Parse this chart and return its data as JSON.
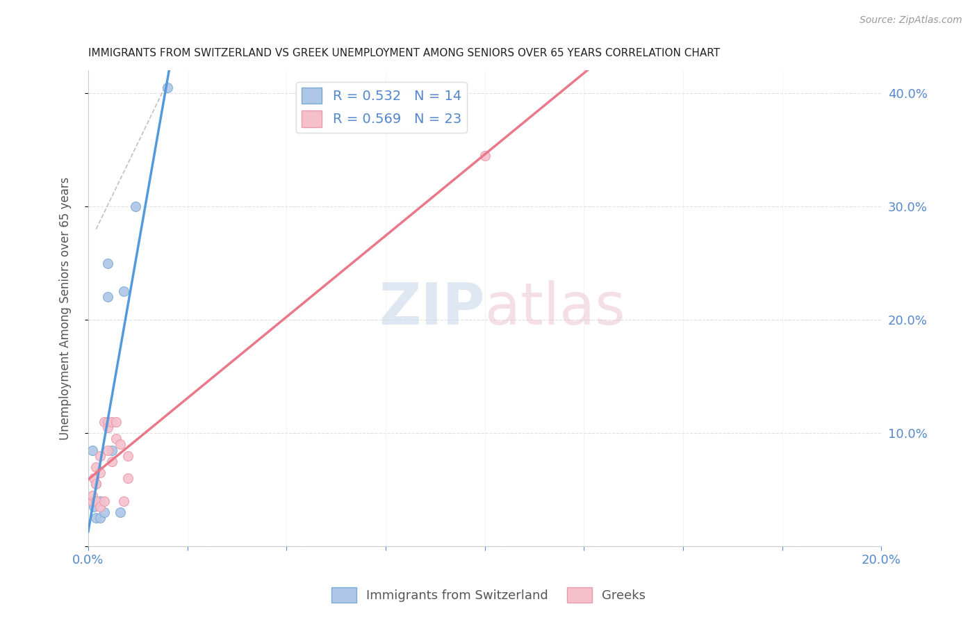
{
  "title": "IMMIGRANTS FROM SWITZERLAND VS GREEK UNEMPLOYMENT AMONG SENIORS OVER 65 YEARS CORRELATION CHART",
  "source": "Source: ZipAtlas.com",
  "ylabel": "Unemployment Among Seniors over 65 years",
  "xlim": [
    0.0,
    0.2
  ],
  "ylim": [
    0.0,
    0.42
  ],
  "x_ticks": [
    0.0,
    0.025,
    0.05,
    0.075,
    0.1,
    0.125,
    0.15,
    0.175,
    0.2
  ],
  "y_ticks": [
    0.0,
    0.1,
    0.2,
    0.3,
    0.4
  ],
  "swiss_R": 0.532,
  "swiss_N": 14,
  "greek_R": 0.569,
  "greek_N": 23,
  "swiss_color": "#aec6e8",
  "swiss_edge_color": "#7aaad0",
  "swiss_line_color": "#5599dd",
  "greek_color": "#f5c0cc",
  "greek_edge_color": "#e899aa",
  "greek_line_color": "#e8788a",
  "swiss_x": [
    0.001,
    0.0015,
    0.002,
    0.002,
    0.003,
    0.003,
    0.004,
    0.005,
    0.005,
    0.006,
    0.008,
    0.009,
    0.012,
    0.02
  ],
  "swiss_y": [
    0.085,
    0.035,
    0.025,
    0.055,
    0.04,
    0.025,
    0.03,
    0.25,
    0.22,
    0.085,
    0.03,
    0.225,
    0.3,
    0.405
  ],
  "greek_x": [
    0.001,
    0.001,
    0.0015,
    0.002,
    0.002,
    0.002,
    0.003,
    0.003,
    0.003,
    0.004,
    0.004,
    0.005,
    0.005,
    0.005,
    0.006,
    0.006,
    0.007,
    0.007,
    0.008,
    0.009,
    0.01,
    0.01,
    0.1
  ],
  "greek_y": [
    0.04,
    0.045,
    0.06,
    0.04,
    0.055,
    0.07,
    0.035,
    0.08,
    0.065,
    0.04,
    0.11,
    0.11,
    0.105,
    0.085,
    0.11,
    0.075,
    0.11,
    0.095,
    0.09,
    0.04,
    0.06,
    0.08,
    0.345
  ],
  "watermark_zip": "ZIP",
  "watermark_atlas": "atlas",
  "background_color": "#ffffff",
  "grid_color": "#e0e0e0",
  "title_color": "#222222",
  "axis_label_color": "#555555",
  "tick_color": "#5588cc",
  "marker_size": 100,
  "dashed_line_color": "#c0c0c0",
  "swiss_line_xlim": [
    0.0,
    0.022
  ],
  "greek_line_xlim": [
    0.0,
    0.2
  ]
}
